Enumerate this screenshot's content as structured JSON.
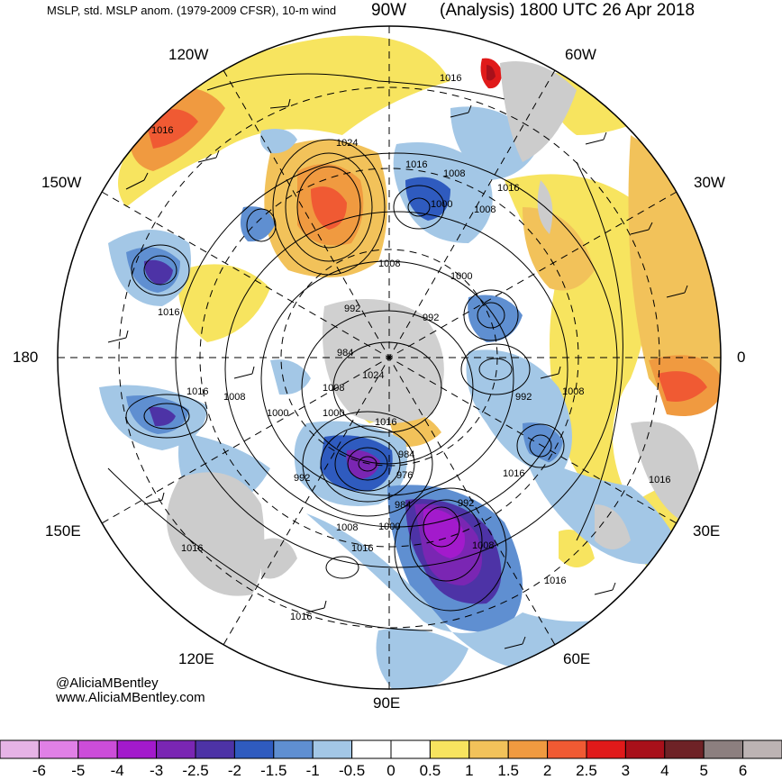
{
  "header": {
    "left_title": "MSLP, std. MSLP anom. (1979-2009 CFSR), 10-m wind",
    "right_title": "(Analysis) 1800 UTC 26 Apr 2018"
  },
  "longitude_labels": {
    "lon_90w": "90W",
    "lon_120w": "120W",
    "lon_60w": "60W",
    "lon_150w": "150W",
    "lon_30w": "30W",
    "lon_180": "180",
    "lon_0": "0",
    "lon_150e": "150E",
    "lon_30e": "30E",
    "lon_120e": "120E",
    "lon_60e": "60E",
    "lon_90e": "90E"
  },
  "credit": {
    "handle": "@AliciaMBentley",
    "website": "www.AliciaMBentley.com"
  },
  "isobar_labels": [
    "1016",
    "1024",
    "1016",
    "1008",
    "1016",
    "1000",
    "1008",
    "1016",
    "1008",
    "1000",
    "992",
    "992",
    "1016",
    "984",
    "1024",
    "1008",
    "1016",
    "1008",
    "1000",
    "1000",
    "1016",
    "992",
    "1008",
    "984",
    "992",
    "976",
    "1016",
    "984",
    "992",
    "1000",
    "1008",
    "1008",
    "1016",
    "1016",
    "1016",
    "1016",
    "1016"
  ],
  "colorbar": {
    "tick_labels": [
      "-6",
      "-5",
      "-4",
      "-3",
      "-2.5",
      "-2",
      "-1.5",
      "-1",
      "-0.5",
      "0",
      "0.5",
      "1",
      "1.5",
      "2",
      "2.5",
      "3",
      "4",
      "5",
      "6"
    ],
    "colors": [
      "#e6b3e6",
      "#e080e6",
      "#cc4dd9",
      "#a31acc",
      "#7a26b3",
      "#4d33a6",
      "#2f5bbf",
      "#5f8fd1",
      "#a3c7e6",
      "#ffffff",
      "#ffffff",
      "#f7e45f",
      "#f2c25a",
      "#f09a40",
      "#f05a33",
      "#e01a1a",
      "#a8101a",
      "#6e2226",
      "#8c7f7f",
      "#bcb3b3"
    ]
  }
}
